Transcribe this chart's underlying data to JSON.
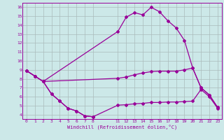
{
  "bg_color": "#cce8e8",
  "line_color": "#990099",
  "grid_color": "#aabbbb",
  "xlabel": "Windchill (Refroidissement éolien,°C)",
  "xlim": [
    -0.5,
    23.5
  ],
  "ylim": [
    3.5,
    16.5
  ],
  "xticks": [
    0,
    1,
    2,
    3,
    4,
    5,
    6,
    7,
    8,
    11,
    12,
    13,
    14,
    15,
    16,
    17,
    18,
    19,
    20,
    21,
    22,
    23
  ],
  "yticks": [
    4,
    5,
    6,
    7,
    8,
    9,
    10,
    11,
    12,
    13,
    14,
    15,
    16
  ],
  "line_upper_x": [
    0,
    1,
    2,
    11,
    12,
    13,
    14,
    15,
    16,
    17,
    18,
    19,
    20,
    21,
    22,
    23
  ],
  "line_upper_y": [
    8.9,
    8.3,
    7.7,
    13.3,
    14.9,
    15.4,
    15.15,
    16.0,
    15.5,
    14.5,
    13.7,
    12.3,
    9.2,
    7.0,
    6.2,
    4.8
  ],
  "line_mid_x": [
    0,
    1,
    2,
    11,
    12,
    13,
    14,
    15,
    16,
    17,
    18,
    19,
    20,
    21,
    22,
    23
  ],
  "line_mid_y": [
    8.9,
    8.3,
    7.7,
    8.05,
    8.2,
    8.45,
    8.65,
    8.8,
    8.85,
    8.85,
    8.85,
    9.0,
    9.2,
    7.0,
    6.2,
    4.8
  ],
  "line_lower_x": [
    0,
    1,
    2,
    3,
    4,
    5,
    6,
    7,
    8
  ],
  "line_lower_y": [
    8.9,
    8.3,
    7.7,
    6.3,
    5.5,
    4.7,
    4.4,
    3.85,
    3.75
  ],
  "line_bottom_x": [
    2,
    3,
    4,
    5,
    6,
    7,
    8,
    11,
    12,
    13,
    14,
    15,
    16,
    17,
    18,
    19,
    20,
    21,
    22,
    23
  ],
  "line_bottom_y": [
    7.7,
    6.3,
    5.5,
    4.7,
    4.4,
    3.85,
    3.75,
    5.05,
    5.1,
    5.2,
    5.25,
    5.35,
    5.35,
    5.4,
    5.4,
    5.45,
    5.5,
    6.8,
    6.0,
    4.7
  ]
}
